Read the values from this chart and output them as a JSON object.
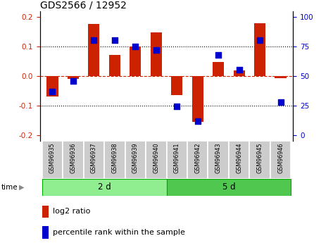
{
  "title": "GDS2566 / 12952",
  "samples": [
    "GSM96935",
    "GSM96936",
    "GSM96937",
    "GSM96938",
    "GSM96939",
    "GSM96940",
    "GSM96941",
    "GSM96942",
    "GSM96943",
    "GSM96944",
    "GSM96945",
    "GSM96946"
  ],
  "log2_ratio": [
    -0.07,
    -0.01,
    0.175,
    0.07,
    0.1,
    0.148,
    -0.065,
    -0.155,
    0.048,
    0.018,
    0.178,
    -0.008
  ],
  "percentile_rank": [
    37,
    46,
    80,
    80,
    75,
    72,
    24,
    12,
    68,
    55,
    80,
    28
  ],
  "groups": [
    {
      "label": "2 d",
      "indices": [
        0,
        1,
        2,
        3,
        4,
        5
      ],
      "color": "#90EE90"
    },
    {
      "label": "5 d",
      "indices": [
        6,
        7,
        8,
        9,
        10,
        11
      ],
      "color": "#50C850"
    }
  ],
  "ylim": [
    -0.22,
    0.22
  ],
  "yticks_left": [
    -0.2,
    -0.1,
    0.0,
    0.1,
    0.2
  ],
  "yticks_right": [
    0,
    25,
    50,
    75,
    100
  ],
  "bar_color": "#CC2200",
  "dot_color": "#0000CC",
  "bar_width": 0.55,
  "dot_size": 35,
  "label_log2": "log2 ratio",
  "label_pct": "percentile rank within the sample",
  "time_label": "time",
  "title_fontsize": 10
}
